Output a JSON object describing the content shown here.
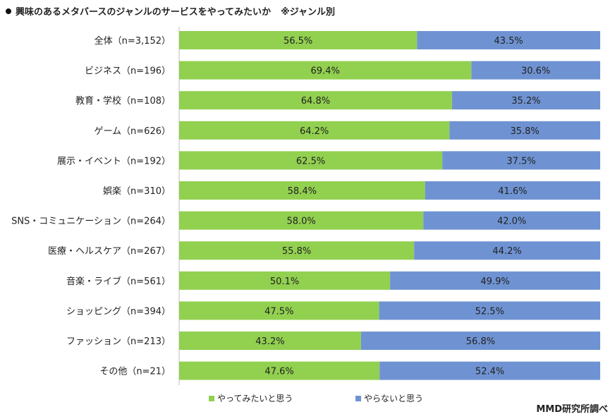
{
  "title": "興味のあるメタバースのジャンルのサービスをやってみたいか",
  "title_note": "※ジャンル別",
  "credit": "MMD研究所調べ",
  "chart_data": {
    "type": "bar",
    "orientation": "horizontal",
    "stacked": true,
    "percent_stacked": true,
    "categories": [
      "全体（n=3,152）",
      "ビジネス（n=196）",
      "教育・学校（n=108）",
      "ゲーム（n=626）",
      "展示・イベント（n=192）",
      "娯楽（n=310）",
      "SNS・コミュニケーション（n=264）",
      "医療・ヘルスケア（n=267）",
      "音楽・ライブ（n=561）",
      "ショッピング（n=394）",
      "ファッション（n=213）",
      "その他（n=21）"
    ],
    "series": [
      {
        "name": "やってみたいと思う",
        "color": "#92d050",
        "values": [
          56.5,
          69.4,
          64.8,
          64.2,
          62.5,
          58.4,
          58.0,
          55.8,
          50.1,
          47.5,
          43.2,
          47.6
        ],
        "labels": [
          "56.5%",
          "69.4%",
          "64.8%",
          "64.2%",
          "62.5%",
          "58.4%",
          "58.0%",
          "55.8%",
          "50.1%",
          "47.5%",
          "43.2%",
          "47.6%"
        ]
      },
      {
        "name": "やらないと思う",
        "color": "#6f93d2",
        "values": [
          43.5,
          30.6,
          35.2,
          35.8,
          37.5,
          41.6,
          42.0,
          44.2,
          49.9,
          52.5,
          56.8,
          52.4
        ],
        "labels": [
          "43.5%",
          "30.6%",
          "35.2%",
          "35.8%",
          "37.5%",
          "41.6%",
          "42.0%",
          "44.2%",
          "49.9%",
          "52.5%",
          "56.8%",
          "52.4%"
        ]
      }
    ],
    "xlim": [
      0,
      100
    ],
    "legend_position": "bottom",
    "grid": false
  }
}
